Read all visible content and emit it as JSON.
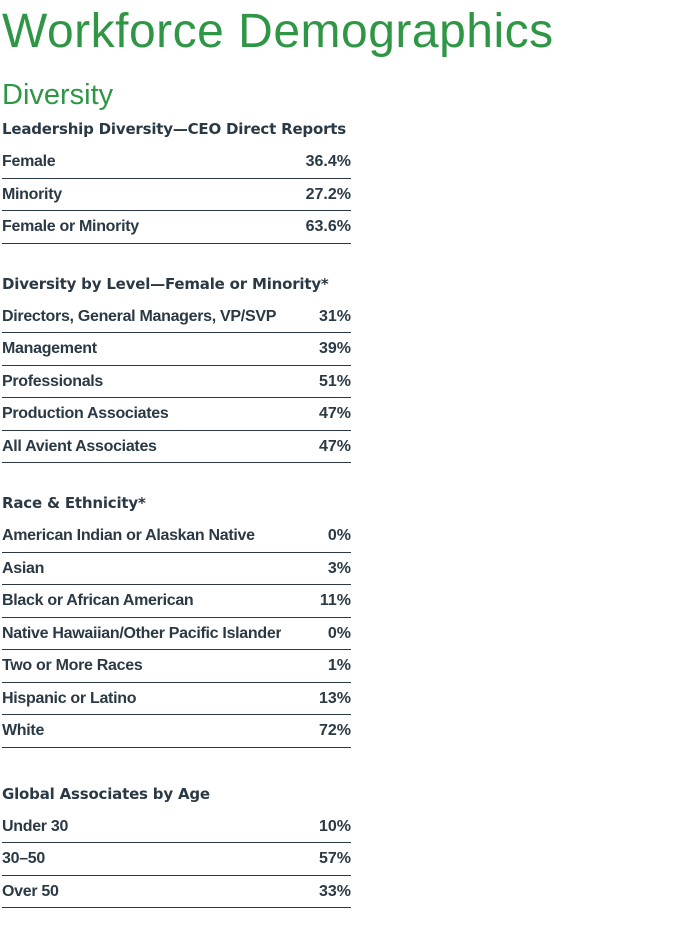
{
  "page_title": "Workforce Demographics",
  "section_title": "Diversity",
  "colors": {
    "heading_green": "#2F9646",
    "text_dark": "#2B3944",
    "background": "#FFFFFF"
  },
  "sections": [
    {
      "header": "Leadership Diversity—CEO Direct Reports",
      "rows": [
        {
          "label": "Female",
          "value": "36.4%"
        },
        {
          "label": "Minority",
          "value": "27.2%"
        },
        {
          "label": "Female or Minority",
          "value": "63.6%"
        }
      ]
    },
    {
      "header": "Diversity by Level—Female or Minority*",
      "rows": [
        {
          "label": "Directors, General Managers, VP/SVP",
          "value": "31%"
        },
        {
          "label": "Management",
          "value": "39%"
        },
        {
          "label": "Professionals",
          "value": "51%"
        },
        {
          "label": "Production Associates",
          "value": "47%"
        },
        {
          "label": "All Avient Associates",
          "value": "47%"
        }
      ]
    },
    {
      "header": "Race & Ethnicity*",
      "rows": [
        {
          "label": "American Indian or Alaskan Native",
          "value": "0%"
        },
        {
          "label": "Asian",
          "value": "3%"
        },
        {
          "label": "Black or African American",
          "value": "11%"
        },
        {
          "label": "Native Hawaiian/Other Pacific Islander",
          "value": "0%"
        },
        {
          "label": "Two or More Races",
          "value": "1%"
        },
        {
          "label": "Hispanic or Latino",
          "value": "13%"
        },
        {
          "label": "White",
          "value": "72%"
        }
      ]
    },
    {
      "header": "Global Associates by Age",
      "rows": [
        {
          "label": "Under 30",
          "value": "10%"
        },
        {
          "label": "30–50",
          "value": "57%"
        },
        {
          "label": "Over 50",
          "value": "33%"
        }
      ]
    }
  ]
}
